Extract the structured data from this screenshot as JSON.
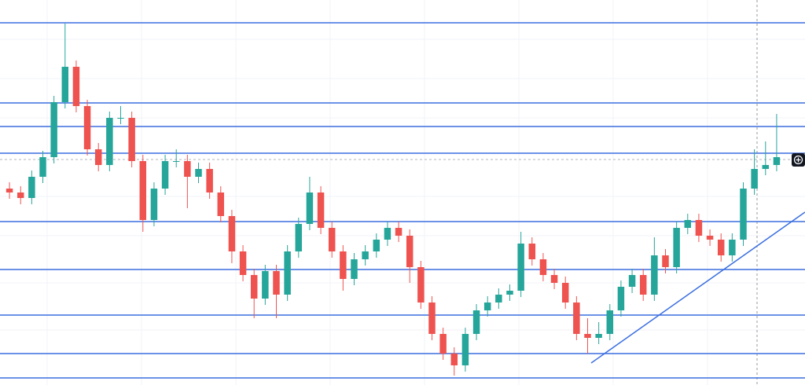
{
  "chart_data": {
    "type": "candlestick",
    "ylim": [
      0,
      490
    ],
    "up_color": "#26a69a",
    "down_color": "#ef5350",
    "level_color": "#3b6fe0",
    "levels": [
      461,
      359,
      329,
      295,
      208,
      147,
      89,
      40,
      9
    ],
    "open": [
      250,
      245,
      238,
      265,
      290,
      360,
      405,
      355,
      300,
      280,
      340,
      340,
      285,
      210,
      250,
      285,
      285,
      265,
      275,
      245,
      215,
      170,
      140,
      110,
      145,
      115,
      170,
      205,
      245,
      200,
      170,
      135,
      160,
      170,
      185,
      200,
      190,
      150,
      105,
      65,
      40,
      25,
      65,
      95,
      105,
      115,
      120,
      180,
      160,
      140,
      130,
      105,
      65,
      60,
      65,
      95,
      125,
      140,
      115,
      165,
      150,
      200,
      210,
      190,
      185,
      165,
      185,
      250,
      275,
      280
    ],
    "high": [
      258,
      253,
      273,
      298,
      368,
      460,
      413,
      363,
      308,
      348,
      355,
      348,
      293,
      258,
      293,
      300,
      293,
      283,
      283,
      253,
      223,
      178,
      148,
      153,
      153,
      178,
      213,
      265,
      253,
      208,
      178,
      168,
      178,
      193,
      208,
      208,
      198,
      158,
      113,
      73,
      48,
      73,
      103,
      113,
      123,
      128,
      195,
      188,
      168,
      148,
      138,
      113,
      85,
      80,
      103,
      133,
      148,
      148,
      188,
      173,
      208,
      218,
      218,
      198,
      193,
      193,
      258,
      300,
      310,
      345
    ],
    "low": [
      237,
      230,
      230,
      257,
      282,
      352,
      347,
      292,
      272,
      272,
      332,
      277,
      195,
      202,
      242,
      277,
      225,
      257,
      237,
      207,
      155,
      132,
      85,
      102,
      85,
      107,
      162,
      197,
      192,
      162,
      120,
      127,
      152,
      162,
      177,
      182,
      130,
      97,
      57,
      32,
      12,
      17,
      57,
      87,
      97,
      107,
      112,
      152,
      132,
      122,
      97,
      57,
      40,
      52,
      57,
      87,
      117,
      107,
      107,
      142,
      142,
      192,
      182,
      177,
      157,
      157,
      177,
      242,
      267,
      272
    ],
    "close": [
      245,
      238,
      265,
      290,
      360,
      405,
      355,
      300,
      280,
      340,
      340,
      285,
      210,
      250,
      285,
      285,
      265,
      275,
      245,
      215,
      170,
      140,
      110,
      145,
      115,
      170,
      205,
      245,
      200,
      170,
      135,
      160,
      170,
      185,
      200,
      190,
      150,
      105,
      65,
      40,
      25,
      65,
      95,
      105,
      115,
      120,
      180,
      160,
      140,
      130,
      105,
      65,
      60,
      65,
      95,
      125,
      140,
      115,
      165,
      150,
      200,
      210,
      190,
      185,
      165,
      185,
      250,
      275,
      280,
      290
    ]
  }
}
